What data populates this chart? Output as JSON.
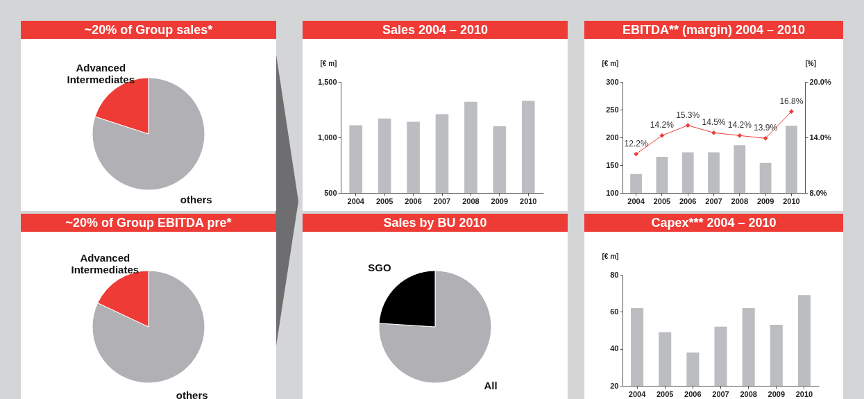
{
  "chart_data": [
    {
      "type": "pie",
      "title": "~20% of Group sales*",
      "categories": [
        "others",
        "Advanced Intermediates"
      ],
      "values": [
        80,
        20
      ],
      "colors": [
        "#b1b1b5",
        "#ee3b36"
      ]
    },
    {
      "type": "bar",
      "title": "Sales 2004 – 2010",
      "ylabel": "[€ m]",
      "categories": [
        "2004",
        "2005",
        "2006",
        "2007",
        "2008",
        "2009",
        "2010"
      ],
      "values": [
        1110,
        1170,
        1140,
        1210,
        1320,
        1100,
        1330
      ],
      "color": "#bcbdc1",
      "ylim": [
        500,
        1500
      ],
      "yticks": [
        500,
        {
          "value": 1000,
          "label": "1,000"
        },
        {
          "value": 1500,
          "label": "1,500"
        }
      ]
    },
    {
      "type": "bar",
      "title": "EBITDA** (margin) 2004 – 2010",
      "ylabel": "[€ m]",
      "y2label": "[%]",
      "categories": [
        "2004",
        "2005",
        "2006",
        "2007",
        "2008",
        "2009",
        "2010"
      ],
      "series": [
        {
          "type": "bar",
          "color": "#bcbdc1",
          "values": [
            134,
            165,
            173,
            173,
            186,
            154,
            221
          ]
        },
        {
          "type": "line",
          "axis": "y2",
          "color": "#ee3b36",
          "values": [
            12.2,
            14.2,
            15.3,
            14.5,
            14.2,
            13.9,
            16.8
          ],
          "value_labels": [
            "12.2%",
            "14.2%",
            "15.3%",
            "14.5%",
            "14.2%",
            "13.9%",
            "16.8%"
          ]
        }
      ],
      "ylim": [
        100,
        300
      ],
      "yticks": [
        100,
        150,
        200,
        250,
        300
      ],
      "y2lim": [
        8,
        20
      ],
      "y2ticks": [
        {
          "value": 8,
          "label": "8.0%"
        },
        {
          "value": 14,
          "label": "14.0%"
        },
        {
          "value": 20,
          "label": "20.0%"
        }
      ],
      "marker": "diamond"
    },
    {
      "type": "pie",
      "title": "~20% of Group EBITDA pre*",
      "categories": [
        "others",
        "Advanced Intermediates"
      ],
      "values": [
        82,
        18
      ],
      "colors": [
        "#b1b1b5",
        "#ee3b36"
      ]
    },
    {
      "type": "pie",
      "title": "Sales by BU 2010",
      "categories": [
        "All",
        "SGO"
      ],
      "values": [
        76,
        24
      ],
      "colors": [
        "#b1b1b5",
        "#000000"
      ]
    },
    {
      "type": "bar",
      "title": "Capex*** 2004 – 2010",
      "ylabel": "[€ m]",
      "categories": [
        "2004",
        "2005",
        "2006",
        "2007",
        "2008",
        "2009",
        "2010"
      ],
      "values": [
        62,
        49,
        38,
        52,
        62,
        53,
        69
      ],
      "color": "#bcbdc1",
      "ylim": [
        20,
        80
      ],
      "yticks": [
        20,
        40,
        60,
        80
      ]
    }
  ]
}
